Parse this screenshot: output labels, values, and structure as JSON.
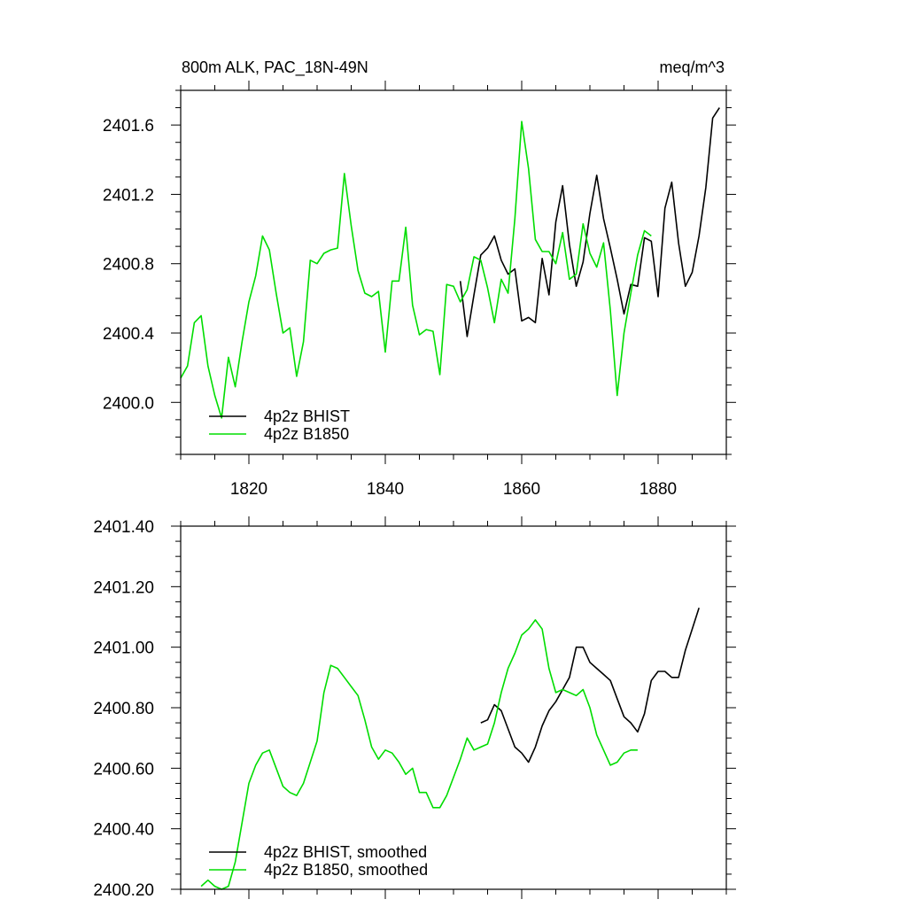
{
  "chart_data": [
    {
      "type": "line",
      "title_left": "800m ALK, PAC_18N-49N",
      "title_right": "meq/m^3",
      "xlabel": "",
      "ylabel": "",
      "xlim": [
        1810,
        1890
      ],
      "ylim": [
        2399.7,
        2401.8
      ],
      "x_ticks": [
        1820,
        1840,
        1860,
        1880
      ],
      "x_tick_labels": [
        "1820",
        "1840",
        "1860",
        "1880"
      ],
      "y_ticks": [
        2400.0,
        2400.4,
        2400.8,
        2401.2,
        2401.6
      ],
      "y_tick_labels": [
        "2400.0",
        "2400.4",
        "2400.8",
        "2401.2",
        "2401.6"
      ],
      "legend_position": "bottom-left",
      "series": [
        {
          "name": "4p2z BHIST",
          "color": "#000000",
          "x": [
            1851,
            1852,
            1853,
            1854,
            1855,
            1856,
            1857,
            1858,
            1859,
            1860,
            1861,
            1862,
            1863,
            1864,
            1865,
            1866,
            1867,
            1868,
            1869,
            1870,
            1871,
            1872,
            1873,
            1874,
            1875,
            1876,
            1877,
            1878,
            1879,
            1880,
            1881,
            1882,
            1883,
            1884,
            1885,
            1886,
            1887,
            1888,
            1889
          ],
          "values": [
            2400.7,
            2400.38,
            2400.62,
            2400.85,
            2400.89,
            2400.96,
            2400.82,
            2400.74,
            2400.77,
            2400.47,
            2400.49,
            2400.46,
            2400.83,
            2400.62,
            2401.04,
            2401.25,
            2400.91,
            2400.67,
            2400.81,
            2401.09,
            2401.31,
            2401.06,
            2400.89,
            2400.71,
            2400.51,
            2400.68,
            2400.67,
            2400.95,
            2400.93,
            2400.61,
            2401.12,
            2401.27,
            2400.92,
            2400.67,
            2400.75,
            2400.96,
            2401.24,
            2401.64,
            2401.7
          ]
        },
        {
          "name": "4p2z B1850",
          "color": "#00dd00",
          "x": [
            1810,
            1811,
            1812,
            1813,
            1814,
            1815,
            1816,
            1817,
            1818,
            1819,
            1820,
            1821,
            1822,
            1823,
            1824,
            1825,
            1826,
            1827,
            1828,
            1829,
            1830,
            1831,
            1832,
            1833,
            1834,
            1835,
            1836,
            1837,
            1838,
            1839,
            1840,
            1841,
            1842,
            1843,
            1844,
            1845,
            1846,
            1847,
            1848,
            1849,
            1850,
            1851,
            1852,
            1853,
            1854,
            1855,
            1856,
            1857,
            1858,
            1859,
            1860,
            1861,
            1862,
            1863,
            1864,
            1865,
            1866,
            1867,
            1868,
            1869,
            1870,
            1871,
            1872,
            1873,
            1874,
            1875,
            1876,
            1877,
            1878,
            1879
          ],
          "values": [
            2400.14,
            2400.21,
            2400.46,
            2400.5,
            2400.21,
            2400.04,
            2399.91,
            2400.26,
            2400.09,
            2400.35,
            2400.58,
            2400.73,
            2400.96,
            2400.88,
            2400.63,
            2400.4,
            2400.43,
            2400.15,
            2400.35,
            2400.82,
            2400.8,
            2400.86,
            2400.88,
            2400.89,
            2401.32,
            2401.02,
            2400.76,
            2400.63,
            2400.61,
            2400.64,
            2400.29,
            2400.7,
            2400.7,
            2401.01,
            2400.56,
            2400.39,
            2400.42,
            2400.41,
            2400.16,
            2400.68,
            2400.67,
            2400.58,
            2400.65,
            2400.84,
            2400.82,
            2400.66,
            2400.46,
            2400.71,
            2400.63,
            2401.06,
            2401.62,
            2401.35,
            2400.94,
            2400.87,
            2400.87,
            2400.8,
            2400.98,
            2400.71,
            2400.74,
            2401.03,
            2400.86,
            2400.78,
            2400.92,
            2400.53,
            2400.04,
            2400.4,
            2400.63,
            2400.85,
            2400.99,
            2400.96
          ]
        }
      ]
    },
    {
      "type": "line",
      "title_left": "",
      "title_right": "",
      "xlabel": "",
      "ylabel": "",
      "xlim": [
        1810,
        1890
      ],
      "ylim": [
        2400.2,
        2401.4
      ],
      "x_ticks": [
        1820,
        1840,
        1860,
        1880
      ],
      "x_tick_labels": [],
      "y_ticks": [
        2400.2,
        2400.4,
        2400.6,
        2400.8,
        2401.0,
        2401.2,
        2401.4
      ],
      "y_tick_labels": [
        "2400.20",
        "2400.40",
        "2400.60",
        "2400.80",
        "2401.00",
        "2401.20",
        "2401.40"
      ],
      "legend_position": "bottom-left",
      "series": [
        {
          "name": "4p2z BHIST, smoothed",
          "color": "#000000",
          "x": [
            1854,
            1855,
            1856,
            1857,
            1858,
            1859,
            1860,
            1861,
            1862,
            1863,
            1864,
            1865,
            1866,
            1867,
            1868,
            1869,
            1870,
            1871,
            1872,
            1873,
            1874,
            1875,
            1876,
            1877,
            1878,
            1879,
            1880,
            1881,
            1882,
            1883,
            1884,
            1885,
            1886
          ],
          "values": [
            2400.75,
            2400.76,
            2400.81,
            2400.79,
            2400.73,
            2400.67,
            2400.65,
            2400.62,
            2400.67,
            2400.74,
            2400.79,
            2400.82,
            2400.86,
            2400.9,
            2401.0,
            2401.0,
            2400.95,
            2400.93,
            2400.91,
            2400.89,
            2400.83,
            2400.77,
            2400.75,
            2400.72,
            2400.78,
            2400.89,
            2400.92,
            2400.92,
            2400.9,
            2400.9,
            2400.99,
            2401.06,
            2401.13
          ]
        },
        {
          "name": "4p2z B1850, smoothed",
          "color": "#00dd00",
          "x": [
            1813,
            1814,
            1815,
            1816,
            1817,
            1818,
            1819,
            1820,
            1821,
            1822,
            1823,
            1824,
            1825,
            1826,
            1827,
            1828,
            1829,
            1830,
            1831,
            1832,
            1833,
            1834,
            1835,
            1836,
            1837,
            1838,
            1839,
            1840,
            1841,
            1842,
            1843,
            1844,
            1845,
            1846,
            1847,
            1848,
            1849,
            1850,
            1851,
            1852,
            1853,
            1854,
            1855,
            1856,
            1857,
            1858,
            1859,
            1860,
            1861,
            1862,
            1863,
            1864,
            1865,
            1866,
            1867,
            1868,
            1869,
            1870,
            1871,
            1872,
            1873,
            1874,
            1875,
            1876,
            1877
          ],
          "values": [
            2400.21,
            2400.23,
            2400.21,
            2400.2,
            2400.21,
            2400.29,
            2400.42,
            2400.55,
            2400.61,
            2400.65,
            2400.66,
            2400.6,
            2400.54,
            2400.52,
            2400.51,
            2400.55,
            2400.62,
            2400.69,
            2400.85,
            2400.94,
            2400.93,
            2400.9,
            2400.87,
            2400.84,
            2400.76,
            2400.67,
            2400.63,
            2400.66,
            2400.65,
            2400.62,
            2400.58,
            2400.6,
            2400.52,
            2400.52,
            2400.47,
            2400.47,
            2400.51,
            2400.57,
            2400.63,
            2400.7,
            2400.66,
            2400.67,
            2400.68,
            2400.75,
            2400.85,
            2400.93,
            2400.98,
            2401.04,
            2401.06,
            2401.09,
            2401.06,
            2400.93,
            2400.85,
            2400.86,
            2400.85,
            2400.84,
            2400.86,
            2400.8,
            2400.71,
            2400.66,
            2400.61,
            2400.62,
            2400.65,
            2400.66,
            2400.66
          ]
        }
      ]
    }
  ]
}
